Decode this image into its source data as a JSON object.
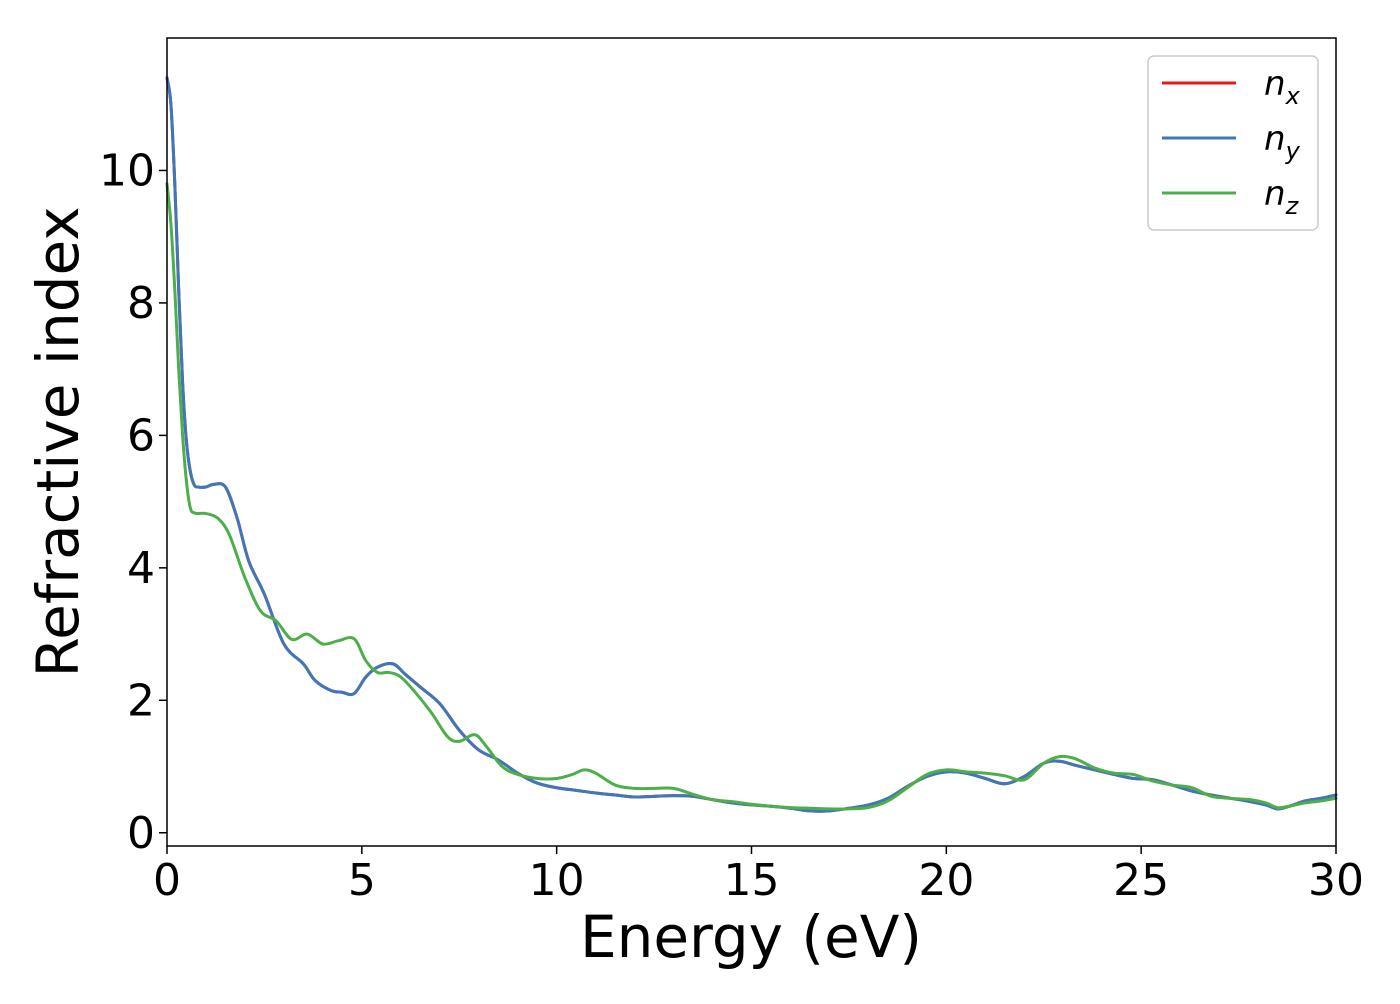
{
  "chart_data": {
    "type": "line",
    "title": "",
    "xlabel": "Energy (eV)",
    "ylabel": "Refractive index",
    "xlim": [
      0,
      30
    ],
    "ylim": [
      -0.2,
      12.0
    ],
    "xticks": [
      0,
      5,
      10,
      15,
      20,
      25,
      30
    ],
    "yticks": [
      0,
      2,
      4,
      6,
      8,
      10
    ],
    "grid": false,
    "legend_position": "top-right",
    "series": [
      {
        "name": "n",
        "subscript": "x",
        "color": "#e41a1c",
        "x": [
          0.0,
          0.1,
          0.2,
          0.3,
          0.4,
          0.5,
          0.6,
          0.7,
          0.8,
          1.0,
          1.2,
          1.5,
          1.8,
          2.1,
          2.5,
          3.0,
          3.5,
          3.8,
          4.2,
          4.5,
          4.8,
          5.1,
          5.4,
          5.8,
          6.1,
          6.5,
          7.0,
          7.5,
          8.0,
          8.5,
          9.0,
          9.5,
          10.0,
          10.5,
          11.0,
          11.5,
          12.0,
          12.5,
          13.0,
          13.5,
          14.0,
          14.5,
          15.0,
          15.5,
          16.0,
          16.5,
          17.0,
          17.5,
          18.0,
          18.5,
          19.0,
          19.5,
          20.0,
          20.5,
          21.0,
          21.5,
          22.0,
          22.5,
          22.9,
          23.3,
          23.8,
          24.3,
          24.8,
          25.3,
          25.8,
          26.3,
          26.8,
          27.3,
          27.8,
          28.2,
          28.5,
          28.8,
          29.2,
          29.6,
          30.0
        ],
        "y": [
          11.4,
          11.0,
          9.8,
          8.2,
          6.8,
          5.9,
          5.45,
          5.25,
          5.22,
          5.22,
          5.26,
          5.22,
          4.75,
          4.1,
          3.6,
          2.85,
          2.55,
          2.3,
          2.15,
          2.12,
          2.1,
          2.35,
          2.5,
          2.55,
          2.4,
          2.2,
          1.95,
          1.55,
          1.25,
          1.1,
          0.9,
          0.75,
          0.68,
          0.64,
          0.6,
          0.57,
          0.54,
          0.55,
          0.56,
          0.55,
          0.5,
          0.45,
          0.42,
          0.4,
          0.37,
          0.33,
          0.33,
          0.37,
          0.42,
          0.52,
          0.7,
          0.85,
          0.92,
          0.9,
          0.82,
          0.74,
          0.85,
          1.05,
          1.08,
          1.02,
          0.95,
          0.88,
          0.82,
          0.8,
          0.72,
          0.63,
          0.57,
          0.52,
          0.47,
          0.42,
          0.36,
          0.4,
          0.48,
          0.52,
          0.57
        ]
      },
      {
        "name": "n",
        "subscript": "y",
        "color": "#3f78b8",
        "x": [
          0.0,
          0.1,
          0.2,
          0.3,
          0.4,
          0.5,
          0.6,
          0.7,
          0.8,
          1.0,
          1.2,
          1.5,
          1.8,
          2.1,
          2.5,
          3.0,
          3.5,
          3.8,
          4.2,
          4.5,
          4.8,
          5.1,
          5.4,
          5.8,
          6.1,
          6.5,
          7.0,
          7.5,
          8.0,
          8.5,
          9.0,
          9.5,
          10.0,
          10.5,
          11.0,
          11.5,
          12.0,
          12.5,
          13.0,
          13.5,
          14.0,
          14.5,
          15.0,
          15.5,
          16.0,
          16.5,
          17.0,
          17.5,
          18.0,
          18.5,
          19.0,
          19.5,
          20.0,
          20.5,
          21.0,
          21.5,
          22.0,
          22.5,
          22.9,
          23.3,
          23.8,
          24.3,
          24.8,
          25.3,
          25.8,
          26.3,
          26.8,
          27.3,
          27.8,
          28.2,
          28.5,
          28.8,
          29.2,
          29.6,
          30.0
        ],
        "y": [
          11.4,
          11.0,
          9.8,
          8.2,
          6.8,
          5.9,
          5.45,
          5.25,
          5.22,
          5.22,
          5.26,
          5.22,
          4.75,
          4.1,
          3.6,
          2.85,
          2.55,
          2.3,
          2.15,
          2.12,
          2.1,
          2.35,
          2.5,
          2.55,
          2.4,
          2.2,
          1.95,
          1.55,
          1.25,
          1.1,
          0.9,
          0.75,
          0.68,
          0.64,
          0.6,
          0.57,
          0.54,
          0.55,
          0.56,
          0.55,
          0.5,
          0.45,
          0.42,
          0.4,
          0.37,
          0.33,
          0.33,
          0.37,
          0.42,
          0.52,
          0.7,
          0.85,
          0.92,
          0.9,
          0.82,
          0.74,
          0.85,
          1.05,
          1.08,
          1.02,
          0.95,
          0.88,
          0.82,
          0.8,
          0.72,
          0.63,
          0.57,
          0.52,
          0.47,
          0.42,
          0.36,
          0.4,
          0.48,
          0.52,
          0.57
        ]
      },
      {
        "name": "n",
        "subscript": "z",
        "color": "#4daf4a",
        "x": [
          0.0,
          0.1,
          0.2,
          0.3,
          0.4,
          0.5,
          0.6,
          0.7,
          0.8,
          1.0,
          1.3,
          1.6,
          2.0,
          2.4,
          2.8,
          3.2,
          3.6,
          4.0,
          4.4,
          4.8,
          5.1,
          5.4,
          5.7,
          6.0,
          6.4,
          6.8,
          7.2,
          7.5,
          7.9,
          8.2,
          8.6,
          9.0,
          9.5,
          10.0,
          10.4,
          10.7,
          11.0,
          11.5,
          12.0,
          12.5,
          13.0,
          13.5,
          14.0,
          14.5,
          15.0,
          15.5,
          16.0,
          16.5,
          17.0,
          17.5,
          18.0,
          18.5,
          19.0,
          19.5,
          20.0,
          20.5,
          21.0,
          21.5,
          22.0,
          22.5,
          22.9,
          23.3,
          23.8,
          24.3,
          24.8,
          25.3,
          25.8,
          26.3,
          26.8,
          27.3,
          27.8,
          28.2,
          28.5,
          28.8,
          29.2,
          29.6,
          30.0
        ],
        "y": [
          9.8,
          9.2,
          8.2,
          7.0,
          6.0,
          5.3,
          4.9,
          4.83,
          4.82,
          4.82,
          4.75,
          4.5,
          3.85,
          3.35,
          3.2,
          2.92,
          3.0,
          2.85,
          2.9,
          2.93,
          2.6,
          2.42,
          2.42,
          2.35,
          2.1,
          1.8,
          1.45,
          1.38,
          1.48,
          1.3,
          1.0,
          0.88,
          0.82,
          0.82,
          0.88,
          0.95,
          0.9,
          0.72,
          0.67,
          0.67,
          0.67,
          0.58,
          0.5,
          0.47,
          0.43,
          0.4,
          0.38,
          0.37,
          0.36,
          0.36,
          0.38,
          0.48,
          0.68,
          0.88,
          0.95,
          0.92,
          0.9,
          0.86,
          0.8,
          1.05,
          1.15,
          1.12,
          0.98,
          0.9,
          0.88,
          0.78,
          0.72,
          0.68,
          0.55,
          0.52,
          0.5,
          0.45,
          0.38,
          0.4,
          0.45,
          0.48,
          0.52
        ]
      }
    ]
  }
}
